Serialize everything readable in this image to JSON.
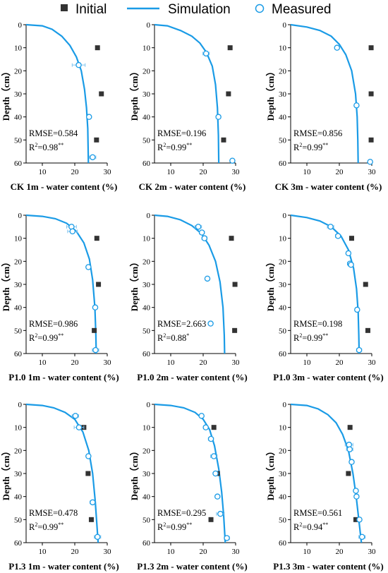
{
  "legend": {
    "initial_label": "Initial",
    "simulation_label": "Simulation",
    "measured_label": "Measured",
    "colors": {
      "initial": "#333333",
      "simulation": "#1a9be6",
      "measured": "#1a9be6"
    }
  },
  "chart_data": [
    {
      "type": "scatter",
      "xlabel": "CK 1m - water content (%)",
      "ylabel": "Depth（cm）",
      "xlim": [
        5,
        30
      ],
      "ylim": [
        0,
        60
      ],
      "y_inverted": true,
      "xticks": [
        10,
        20,
        30
      ],
      "yticks": [
        0,
        10,
        20,
        30,
        40,
        50,
        60
      ],
      "rmse": "RMSE=0.584",
      "r2": "R²=0.98**",
      "r2_text": "R",
      "r2_sup": "2",
      "r2_val": "=0.98",
      "r2_sig": "**",
      "initial": [
        [
          27,
          10
        ],
        [
          28.2,
          30
        ],
        [
          26.7,
          50
        ]
      ],
      "measured": [
        [
          21.2,
          17.5,
          2
        ],
        [
          24.4,
          40,
          0.6
        ],
        [
          25.5,
          57.5,
          1
        ]
      ],
      "simulation": [
        [
          5,
          0
        ],
        [
          10,
          0.5
        ],
        [
          13,
          2
        ],
        [
          16,
          5
        ],
        [
          18.5,
          9
        ],
        [
          20.5,
          14
        ],
        [
          22,
          20
        ],
        [
          23,
          28
        ],
        [
          23.6,
          36
        ],
        [
          24,
          45
        ],
        [
          24.2,
          60
        ]
      ]
    },
    {
      "type": "scatter",
      "xlabel": "CK 2m - water content (%)",
      "ylabel": "Depth（cm）",
      "xlim": [
        5,
        30
      ],
      "ylim": [
        0,
        60
      ],
      "y_inverted": true,
      "xticks": [
        10,
        20,
        30
      ],
      "yticks": [
        0,
        10,
        20,
        30,
        40,
        50,
        60
      ],
      "rmse": "RMSE=0.196",
      "r2": "R²=0.99**",
      "r2_text": "R",
      "r2_sup": "2",
      "r2_val": "=0.99",
      "r2_sig": "**",
      "initial": [
        [
          28.3,
          10
        ],
        [
          27.8,
          30
        ],
        [
          26.3,
          50
        ]
      ],
      "measured": [
        [
          20.9,
          12.5,
          1
        ],
        [
          24.7,
          40,
          0.5
        ],
        [
          29,
          59,
          0
        ]
      ],
      "simulation": [
        [
          5,
          0
        ],
        [
          9,
          0.5
        ],
        [
          13,
          2.5
        ],
        [
          16.5,
          5
        ],
        [
          19,
          8
        ],
        [
          21,
          12
        ],
        [
          22.8,
          18
        ],
        [
          23.8,
          26
        ],
        [
          24.4,
          36
        ],
        [
          24.7,
          48
        ],
        [
          24.8,
          60
        ]
      ]
    },
    {
      "type": "scatter",
      "xlabel": "CK 3m - water content (%)",
      "ylabel": "Depth（cm）",
      "xlim": [
        5,
        30
      ],
      "ylim": [
        0,
        60
      ],
      "y_inverted": true,
      "xticks": [
        10,
        20,
        30
      ],
      "yticks": [
        0,
        10,
        20,
        30,
        40,
        50,
        60
      ],
      "rmse": "RMSE=0.856",
      "r2": "R²=0.99**",
      "r2_text": "R",
      "r2_sup": "2",
      "r2_val": "=0.99",
      "r2_sig": "**",
      "initial": [
        [
          29.8,
          10
        ],
        [
          29.8,
          30
        ],
        [
          29.8,
          50
        ]
      ],
      "measured": [
        [
          19.3,
          10,
          0
        ],
        [
          25.3,
          35,
          0
        ],
        [
          29.5,
          59.5,
          0
        ]
      ],
      "simulation": [
        [
          5,
          0
        ],
        [
          10,
          1
        ],
        [
          14,
          2.5
        ],
        [
          17.5,
          5
        ],
        [
          20,
          8.5
        ],
        [
          22,
          13
        ],
        [
          23.8,
          20
        ],
        [
          25,
          30
        ],
        [
          25.5,
          40
        ],
        [
          25.7,
          50
        ],
        [
          25.8,
          60
        ]
      ]
    },
    {
      "type": "scatter",
      "xlabel": "P1.0 1m - water content (%)",
      "ylabel": "Depth（cm）",
      "xlim": [
        5,
        30
      ],
      "ylim": [
        0,
        60
      ],
      "y_inverted": true,
      "xticks": [
        10,
        20,
        30
      ],
      "yticks": [
        0,
        10,
        20,
        30,
        40,
        50,
        60
      ],
      "rmse": "RMSE=0.986",
      "r2": "R²=0.99**",
      "r2_text": "R",
      "r2_sup": "2",
      "r2_val": "=0.99",
      "r2_sig": "**",
      "initial": [
        [
          26.8,
          10
        ],
        [
          27.3,
          30
        ],
        [
          26,
          50
        ]
      ],
      "measured": [
        [
          19,
          5,
          1.5
        ],
        [
          19.3,
          7,
          1.5
        ],
        [
          24.2,
          22.5,
          0.6
        ],
        [
          26.3,
          40,
          0.6
        ],
        [
          26.4,
          58.5,
          1
        ]
      ],
      "simulation": [
        [
          5,
          0
        ],
        [
          10,
          0.5
        ],
        [
          14,
          1.5
        ],
        [
          17.5,
          3.5
        ],
        [
          20.5,
          7
        ],
        [
          22.8,
          12
        ],
        [
          24.5,
          19
        ],
        [
          25.5,
          28
        ],
        [
          26.2,
          40
        ],
        [
          26.5,
          52
        ],
        [
          26.6,
          60
        ]
      ]
    },
    {
      "type": "scatter",
      "xlabel": "P1.0 2m - water content (%)",
      "ylabel": "Depth（cm）",
      "xlim": [
        5,
        30
      ],
      "ylim": [
        0,
        60
      ],
      "y_inverted": true,
      "xticks": [
        10,
        20,
        30
      ],
      "yticks": [
        0,
        10,
        20,
        30,
        40,
        50,
        60
      ],
      "rmse": "RMSE=2.663",
      "r2": "R²=0.88*",
      "r2_text": "R",
      "r2_sup": "2",
      "r2_val": "=0.88",
      "r2_sig": "*",
      "initial": [
        [
          28.7,
          10
        ],
        [
          29.8,
          30
        ],
        [
          29.7,
          50
        ]
      ],
      "measured": [
        [
          18.5,
          5,
          1
        ],
        [
          19.6,
          7.5,
          0.8
        ],
        [
          20.4,
          10,
          0.8
        ],
        [
          21.3,
          27.5,
          0
        ],
        [
          22.3,
          47,
          0.6
        ]
      ],
      "simulation": [
        [
          5,
          0
        ],
        [
          9,
          0.5
        ],
        [
          13,
          2
        ],
        [
          16.5,
          4.5
        ],
        [
          19.5,
          8
        ],
        [
          21.8,
          13
        ],
        [
          23.8,
          20
        ],
        [
          25.2,
          29
        ],
        [
          26.1,
          40
        ],
        [
          26.5,
          52
        ],
        [
          26.6,
          60
        ]
      ]
    },
    {
      "type": "scatter",
      "xlabel": "P1.0 3m - water content (%)",
      "ylabel": "Depth（cm）",
      "xlim": [
        5,
        30
      ],
      "ylim": [
        0,
        60
      ],
      "y_inverted": true,
      "xticks": [
        10,
        20,
        30
      ],
      "yticks": [
        0,
        10,
        20,
        30,
        40,
        50,
        60
      ],
      "rmse": "RMSE=0.198",
      "r2": "R²=0.99**",
      "r2_text": "R",
      "r2_sup": "2",
      "r2_val": "=0.99",
      "r2_sig": "**",
      "initial": [
        [
          23.8,
          10
        ],
        [
          28.1,
          30
        ],
        [
          28.8,
          50
        ]
      ],
      "measured": [
        [
          17.3,
          5,
          1
        ],
        [
          19.6,
          9,
          0.8
        ],
        [
          22.8,
          16.5,
          0.5
        ],
        [
          23.3,
          21,
          0.8
        ],
        [
          23.6,
          21.5,
          0.8
        ],
        [
          25.5,
          41,
          0.5
        ],
        [
          26.1,
          58.5,
          0.8
        ]
      ],
      "simulation": [
        [
          5,
          0
        ],
        [
          10,
          1
        ],
        [
          14,
          2.5
        ],
        [
          17.5,
          5
        ],
        [
          20.5,
          9
        ],
        [
          22.8,
          15
        ],
        [
          24.4,
          23
        ],
        [
          25.3,
          32
        ],
        [
          25.8,
          42
        ],
        [
          26,
          52
        ],
        [
          26.1,
          60
        ]
      ]
    },
    {
      "type": "scatter",
      "xlabel": "P1.3 1m - water content (%)",
      "ylabel": "Depth（cm）",
      "xlim": [
        5,
        30
      ],
      "ylim": [
        0,
        60
      ],
      "y_inverted": true,
      "xticks": [
        10,
        20,
        30
      ],
      "yticks": [
        0,
        10,
        20,
        30,
        40,
        50,
        60
      ],
      "rmse": "RMSE=0.478",
      "r2": "R²=0.99**",
      "r2_text": "R",
      "r2_sup": "2",
      "r2_val": "=0.99",
      "r2_sig": "**",
      "initial": [
        [
          22.8,
          10
        ],
        [
          24.1,
          30
        ],
        [
          25.1,
          50
        ]
      ],
      "measured": [
        [
          20.2,
          5,
          1
        ],
        [
          21.3,
          10,
          1.5
        ],
        [
          24.2,
          22.5,
          0.6
        ],
        [
          25.5,
          42.5,
          0.8
        ],
        [
          27,
          57.5,
          1
        ]
      ],
      "simulation": [
        [
          5,
          0
        ],
        [
          10,
          0.5
        ],
        [
          13.5,
          1.5
        ],
        [
          17,
          3.5
        ],
        [
          20,
          6.5
        ],
        [
          22.5,
          12
        ],
        [
          24.3,
          20
        ],
        [
          25.5,
          30
        ],
        [
          26.3,
          42
        ],
        [
          26.8,
          52
        ],
        [
          27.2,
          60
        ]
      ]
    },
    {
      "type": "scatter",
      "xlabel": "P1.3 2m - water content (%)",
      "ylabel": "Depth（cm）",
      "xlim": [
        5,
        30
      ],
      "ylim": [
        0,
        60
      ],
      "y_inverted": true,
      "xticks": [
        10,
        20,
        30
      ],
      "yticks": [
        0,
        10,
        20,
        30,
        40,
        50,
        60
      ],
      "rmse": "RMSE=0.295",
      "r2": "R²=0.99**",
      "r2_text": "R",
      "r2_sup": "2",
      "r2_val": "=0.99",
      "r2_sig": "**",
      "initial": [
        [
          23.3,
          10
        ],
        [
          24.4,
          30
        ],
        [
          22.4,
          50
        ]
      ],
      "measured": [
        [
          19.5,
          5,
          0.6
        ],
        [
          20.8,
          10,
          0.6
        ],
        [
          22.4,
          15,
          0.8
        ],
        [
          23.3,
          22.5,
          1
        ],
        [
          23.8,
          30,
          0.6
        ],
        [
          24.4,
          40,
          0.6
        ],
        [
          25.3,
          47.5,
          1.2
        ],
        [
          27.3,
          58,
          0.8
        ]
      ],
      "simulation": [
        [
          5,
          0
        ],
        [
          10,
          0.5
        ],
        [
          14,
          1.5
        ],
        [
          17.5,
          3.5
        ],
        [
          20,
          6.5
        ],
        [
          22,
          11
        ],
        [
          23.5,
          18
        ],
        [
          24.8,
          28
        ],
        [
          25.7,
          38
        ],
        [
          26.3,
          48
        ],
        [
          26.8,
          60
        ]
      ]
    },
    {
      "type": "scatter",
      "xlabel": "P1.3 3m - water content (%)",
      "ylabel": "Depth（cm）",
      "xlim": [
        5,
        30
      ],
      "ylim": [
        0,
        60
      ],
      "y_inverted": true,
      "xticks": [
        10,
        20,
        30
      ],
      "yticks": [
        0,
        10,
        20,
        30,
        40,
        50,
        60
      ],
      "rmse": "RMSE=0.561",
      "r2": "R²=0.94**",
      "r2_text": "R",
      "r2_sup": "2",
      "r2_val": "=0.94",
      "r2_sig": "**",
      "initial": [
        [
          23.3,
          10
        ],
        [
          22.8,
          30
        ],
        [
          25.1,
          50
        ]
      ],
      "measured": [
        [
          23,
          17.5,
          1.2
        ],
        [
          23.2,
          19.5,
          1
        ],
        [
          23.8,
          25,
          0.6
        ],
        [
          25.1,
          37.5,
          0.6
        ],
        [
          25.3,
          40,
          0.6
        ],
        [
          26.2,
          50,
          0.6
        ],
        [
          27,
          57.5,
          1
        ]
      ],
      "simulation": [
        [
          5,
          0
        ],
        [
          10,
          0.5
        ],
        [
          13.5,
          2
        ],
        [
          16.5,
          4.5
        ],
        [
          19,
          8
        ],
        [
          21,
          13
        ],
        [
          22.8,
          20
        ],
        [
          24.2,
          30
        ],
        [
          25.2,
          40
        ],
        [
          26,
          50
        ],
        [
          26.8,
          60
        ]
      ]
    }
  ]
}
